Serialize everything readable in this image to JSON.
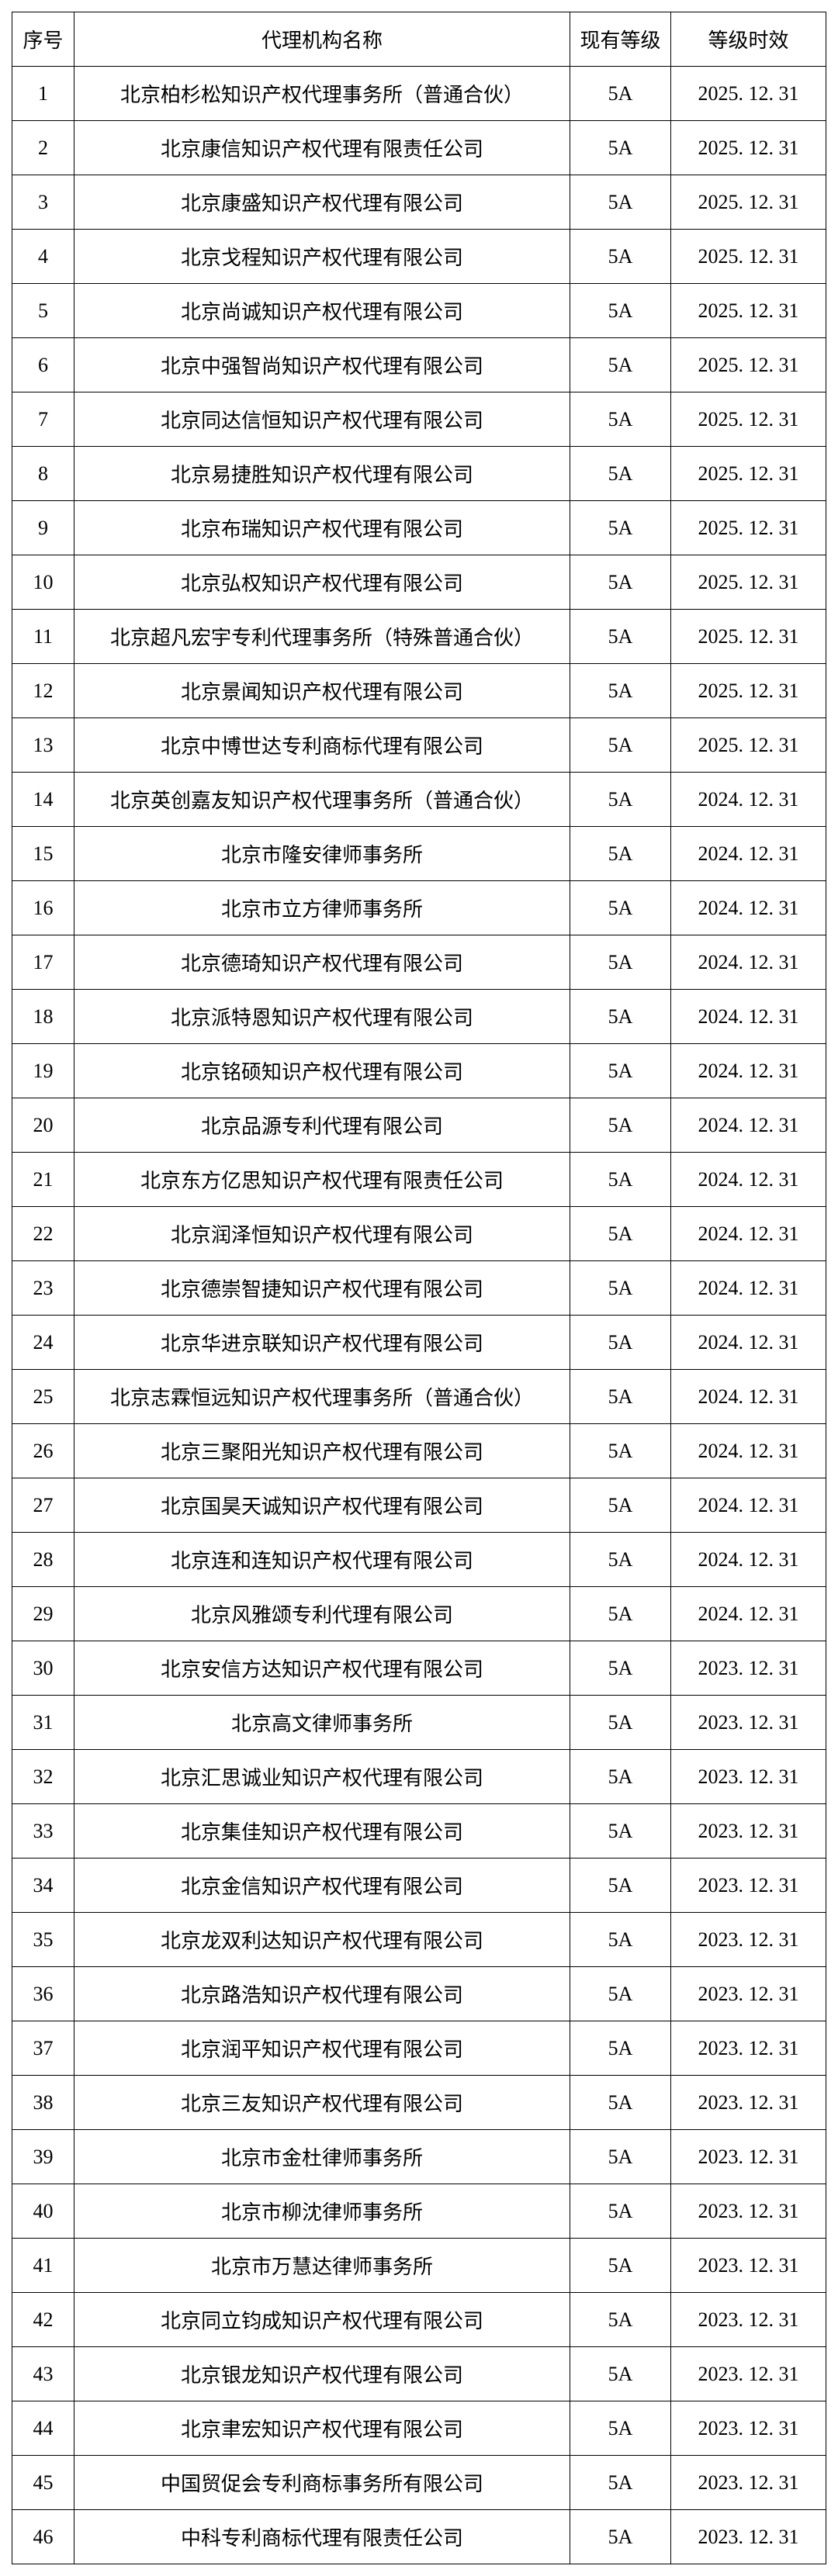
{
  "table": {
    "columns": [
      {
        "key": "index",
        "label": "序号",
        "class": "col-index"
      },
      {
        "key": "name",
        "label": "代理机构名称",
        "class": "col-name"
      },
      {
        "key": "grade",
        "label": "现有等级",
        "class": "col-grade"
      },
      {
        "key": "date",
        "label": "等级时效",
        "class": "col-date"
      }
    ],
    "rows": [
      {
        "index": "1",
        "name": "北京柏杉松知识产权代理事务所（普通合伙）",
        "grade": "5A",
        "date": "2025. 12. 31"
      },
      {
        "index": "2",
        "name": "北京康信知识产权代理有限责任公司",
        "grade": "5A",
        "date": "2025. 12. 31"
      },
      {
        "index": "3",
        "name": "北京康盛知识产权代理有限公司",
        "grade": "5A",
        "date": "2025. 12. 31"
      },
      {
        "index": "4",
        "name": "北京戈程知识产权代理有限公司",
        "grade": "5A",
        "date": "2025. 12. 31"
      },
      {
        "index": "5",
        "name": "北京尚诚知识产权代理有限公司",
        "grade": "5A",
        "date": "2025. 12. 31"
      },
      {
        "index": "6",
        "name": "北京中强智尚知识产权代理有限公司",
        "grade": "5A",
        "date": "2025. 12. 31"
      },
      {
        "index": "7",
        "name": "北京同达信恒知识产权代理有限公司",
        "grade": "5A",
        "date": "2025. 12. 31"
      },
      {
        "index": "8",
        "name": "北京易捷胜知识产权代理有限公司",
        "grade": "5A",
        "date": "2025. 12. 31"
      },
      {
        "index": "9",
        "name": "北京布瑞知识产权代理有限公司",
        "grade": "5A",
        "date": "2025. 12. 31"
      },
      {
        "index": "10",
        "name": "北京弘权知识产权代理有限公司",
        "grade": "5A",
        "date": "2025. 12. 31"
      },
      {
        "index": "11",
        "name": "北京超凡宏宇专利代理事务所（特殊普通合伙）",
        "grade": "5A",
        "date": "2025. 12. 31"
      },
      {
        "index": "12",
        "name": "北京景闻知识产权代理有限公司",
        "grade": "5A",
        "date": "2025. 12. 31"
      },
      {
        "index": "13",
        "name": "北京中博世达专利商标代理有限公司",
        "grade": "5A",
        "date": "2025. 12. 31"
      },
      {
        "index": "14",
        "name": "北京英创嘉友知识产权代理事务所（普通合伙）",
        "grade": "5A",
        "date": "2024. 12. 31"
      },
      {
        "index": "15",
        "name": "北京市隆安律师事务所",
        "grade": "5A",
        "date": "2024. 12. 31"
      },
      {
        "index": "16",
        "name": "北京市立方律师事务所",
        "grade": "5A",
        "date": "2024. 12. 31"
      },
      {
        "index": "17",
        "name": "北京德琦知识产权代理有限公司",
        "grade": "5A",
        "date": "2024. 12. 31"
      },
      {
        "index": "18",
        "name": "北京派特恩知识产权代理有限公司",
        "grade": "5A",
        "date": "2024. 12. 31"
      },
      {
        "index": "19",
        "name": "北京铭硕知识产权代理有限公司",
        "grade": "5A",
        "date": "2024. 12. 31"
      },
      {
        "index": "20",
        "name": "北京品源专利代理有限公司",
        "grade": "5A",
        "date": "2024. 12. 31"
      },
      {
        "index": "21",
        "name": "北京东方亿思知识产权代理有限责任公司",
        "grade": "5A",
        "date": "2024. 12. 31"
      },
      {
        "index": "22",
        "name": "北京润泽恒知识产权代理有限公司",
        "grade": "5A",
        "date": "2024. 12. 31"
      },
      {
        "index": "23",
        "name": "北京德崇智捷知识产权代理有限公司",
        "grade": "5A",
        "date": "2024. 12. 31"
      },
      {
        "index": "24",
        "name": "北京华进京联知识产权代理有限公司",
        "grade": "5A",
        "date": "2024. 12. 31"
      },
      {
        "index": "25",
        "name": "北京志霖恒远知识产权代理事务所（普通合伙）",
        "grade": "5A",
        "date": "2024. 12. 31"
      },
      {
        "index": "26",
        "name": "北京三聚阳光知识产权代理有限公司",
        "grade": "5A",
        "date": "2024. 12. 31"
      },
      {
        "index": "27",
        "name": "北京国昊天诚知识产权代理有限公司",
        "grade": "5A",
        "date": "2024. 12. 31"
      },
      {
        "index": "28",
        "name": "北京连和连知识产权代理有限公司",
        "grade": "5A",
        "date": "2024. 12. 31"
      },
      {
        "index": "29",
        "name": "北京风雅颂专利代理有限公司",
        "grade": "5A",
        "date": "2024. 12. 31"
      },
      {
        "index": "30",
        "name": "北京安信方达知识产权代理有限公司",
        "grade": "5A",
        "date": "2023. 12. 31"
      },
      {
        "index": "31",
        "name": "北京高文律师事务所",
        "grade": "5A",
        "date": "2023. 12. 31"
      },
      {
        "index": "32",
        "name": "北京汇思诚业知识产权代理有限公司",
        "grade": "5A",
        "date": "2023. 12. 31"
      },
      {
        "index": "33",
        "name": "北京集佳知识产权代理有限公司",
        "grade": "5A",
        "date": "2023. 12. 31"
      },
      {
        "index": "34",
        "name": "北京金信知识产权代理有限公司",
        "grade": "5A",
        "date": "2023. 12. 31"
      },
      {
        "index": "35",
        "name": "北京龙双利达知识产权代理有限公司",
        "grade": "5A",
        "date": "2023. 12. 31"
      },
      {
        "index": "36",
        "name": "北京路浩知识产权代理有限公司",
        "grade": "5A",
        "date": "2023. 12. 31"
      },
      {
        "index": "37",
        "name": "北京润平知识产权代理有限公司",
        "grade": "5A",
        "date": "2023. 12. 31"
      },
      {
        "index": "38",
        "name": "北京三友知识产权代理有限公司",
        "grade": "5A",
        "date": "2023. 12. 31"
      },
      {
        "index": "39",
        "name": "北京市金杜律师事务所",
        "grade": "5A",
        "date": "2023. 12. 31"
      },
      {
        "index": "40",
        "name": "北京市柳沈律师事务所",
        "grade": "5A",
        "date": "2023. 12. 31"
      },
      {
        "index": "41",
        "name": "北京市万慧达律师事务所",
        "grade": "5A",
        "date": "2023. 12. 31"
      },
      {
        "index": "42",
        "name": "北京同立钧成知识产权代理有限公司",
        "grade": "5A",
        "date": "2023. 12. 31"
      },
      {
        "index": "43",
        "name": "北京银龙知识产权代理有限公司",
        "grade": "5A",
        "date": "2023. 12. 31"
      },
      {
        "index": "44",
        "name": "北京聿宏知识产权代理有限公司",
        "grade": "5A",
        "date": "2023. 12. 31"
      },
      {
        "index": "45",
        "name": "中国贸促会专利商标事务所有限公司",
        "grade": "5A",
        "date": "2023. 12. 31"
      },
      {
        "index": "46",
        "name": "中科专利商标代理有限责任公司",
        "grade": "5A",
        "date": "2023. 12. 31"
      }
    ]
  },
  "styling": {
    "background_color": "#ffffff",
    "border_color": "#000000",
    "text_color": "#000000",
    "font_family": "SimSun, 宋体, serif",
    "font_size": 26,
    "cell_padding": "16px 8px"
  }
}
